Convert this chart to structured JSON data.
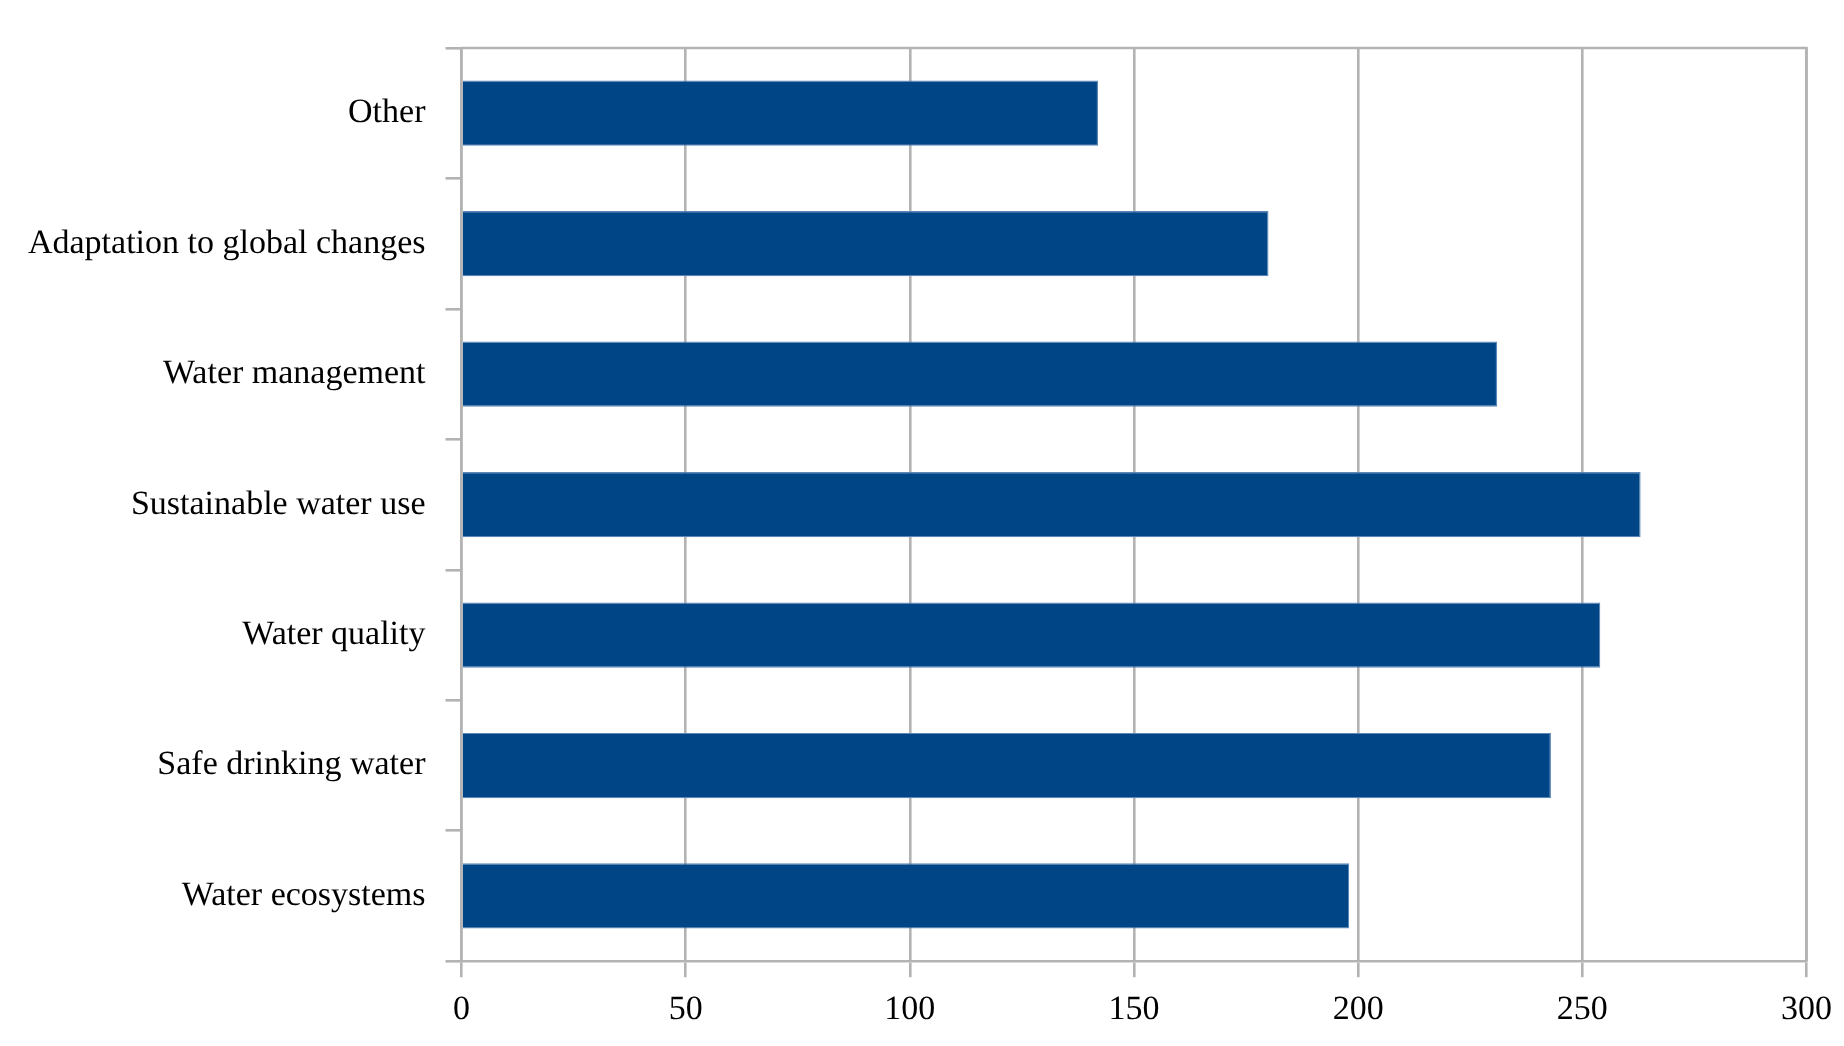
{
  "chart_data": {
    "type": "bar",
    "orientation": "horizontal",
    "categories": [
      "Other",
      "Adaptation to global changes",
      "Water management",
      "Sustainable water use",
      "Water quality",
      "Safe drinking water",
      "Water ecosystems"
    ],
    "values": [
      142,
      180,
      231,
      263,
      254,
      243,
      198
    ],
    "color": "#004586",
    "xlim": [
      0,
      300
    ],
    "xticks": [
      0,
      50,
      100,
      150,
      200,
      250,
      300
    ],
    "grid": "x",
    "legend": false
  }
}
